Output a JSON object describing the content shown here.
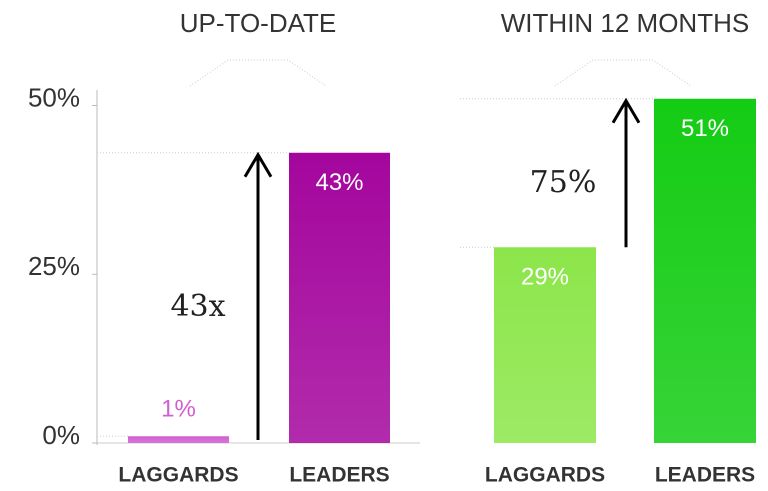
{
  "chart_data": [
    {
      "type": "bar",
      "title": "UP-TO-DATE",
      "categories": [
        "LAGGARDS",
        "LEADERS"
      ],
      "values": [
        1,
        43
      ],
      "value_labels": [
        "1%",
        "43%"
      ],
      "colors": [
        "#d05fd0",
        "#a4069d"
      ],
      "annotation": "43x",
      "ylim": [
        0,
        52
      ],
      "yticks": [
        {
          "value": 0,
          "label": "0%"
        },
        {
          "value": 25,
          "label": "25%"
        },
        {
          "value": 50,
          "label": "50%"
        }
      ]
    },
    {
      "type": "bar",
      "title": "WITHIN 12 MONTHS",
      "categories": [
        "LAGGARDS",
        "LEADERS"
      ],
      "values": [
        29,
        51
      ],
      "value_labels": [
        "29%",
        "51%"
      ],
      "colors": [
        "#8ce64a",
        "#14cc14"
      ],
      "annotation": "75%",
      "ylim": [
        0,
        52
      ]
    }
  ]
}
